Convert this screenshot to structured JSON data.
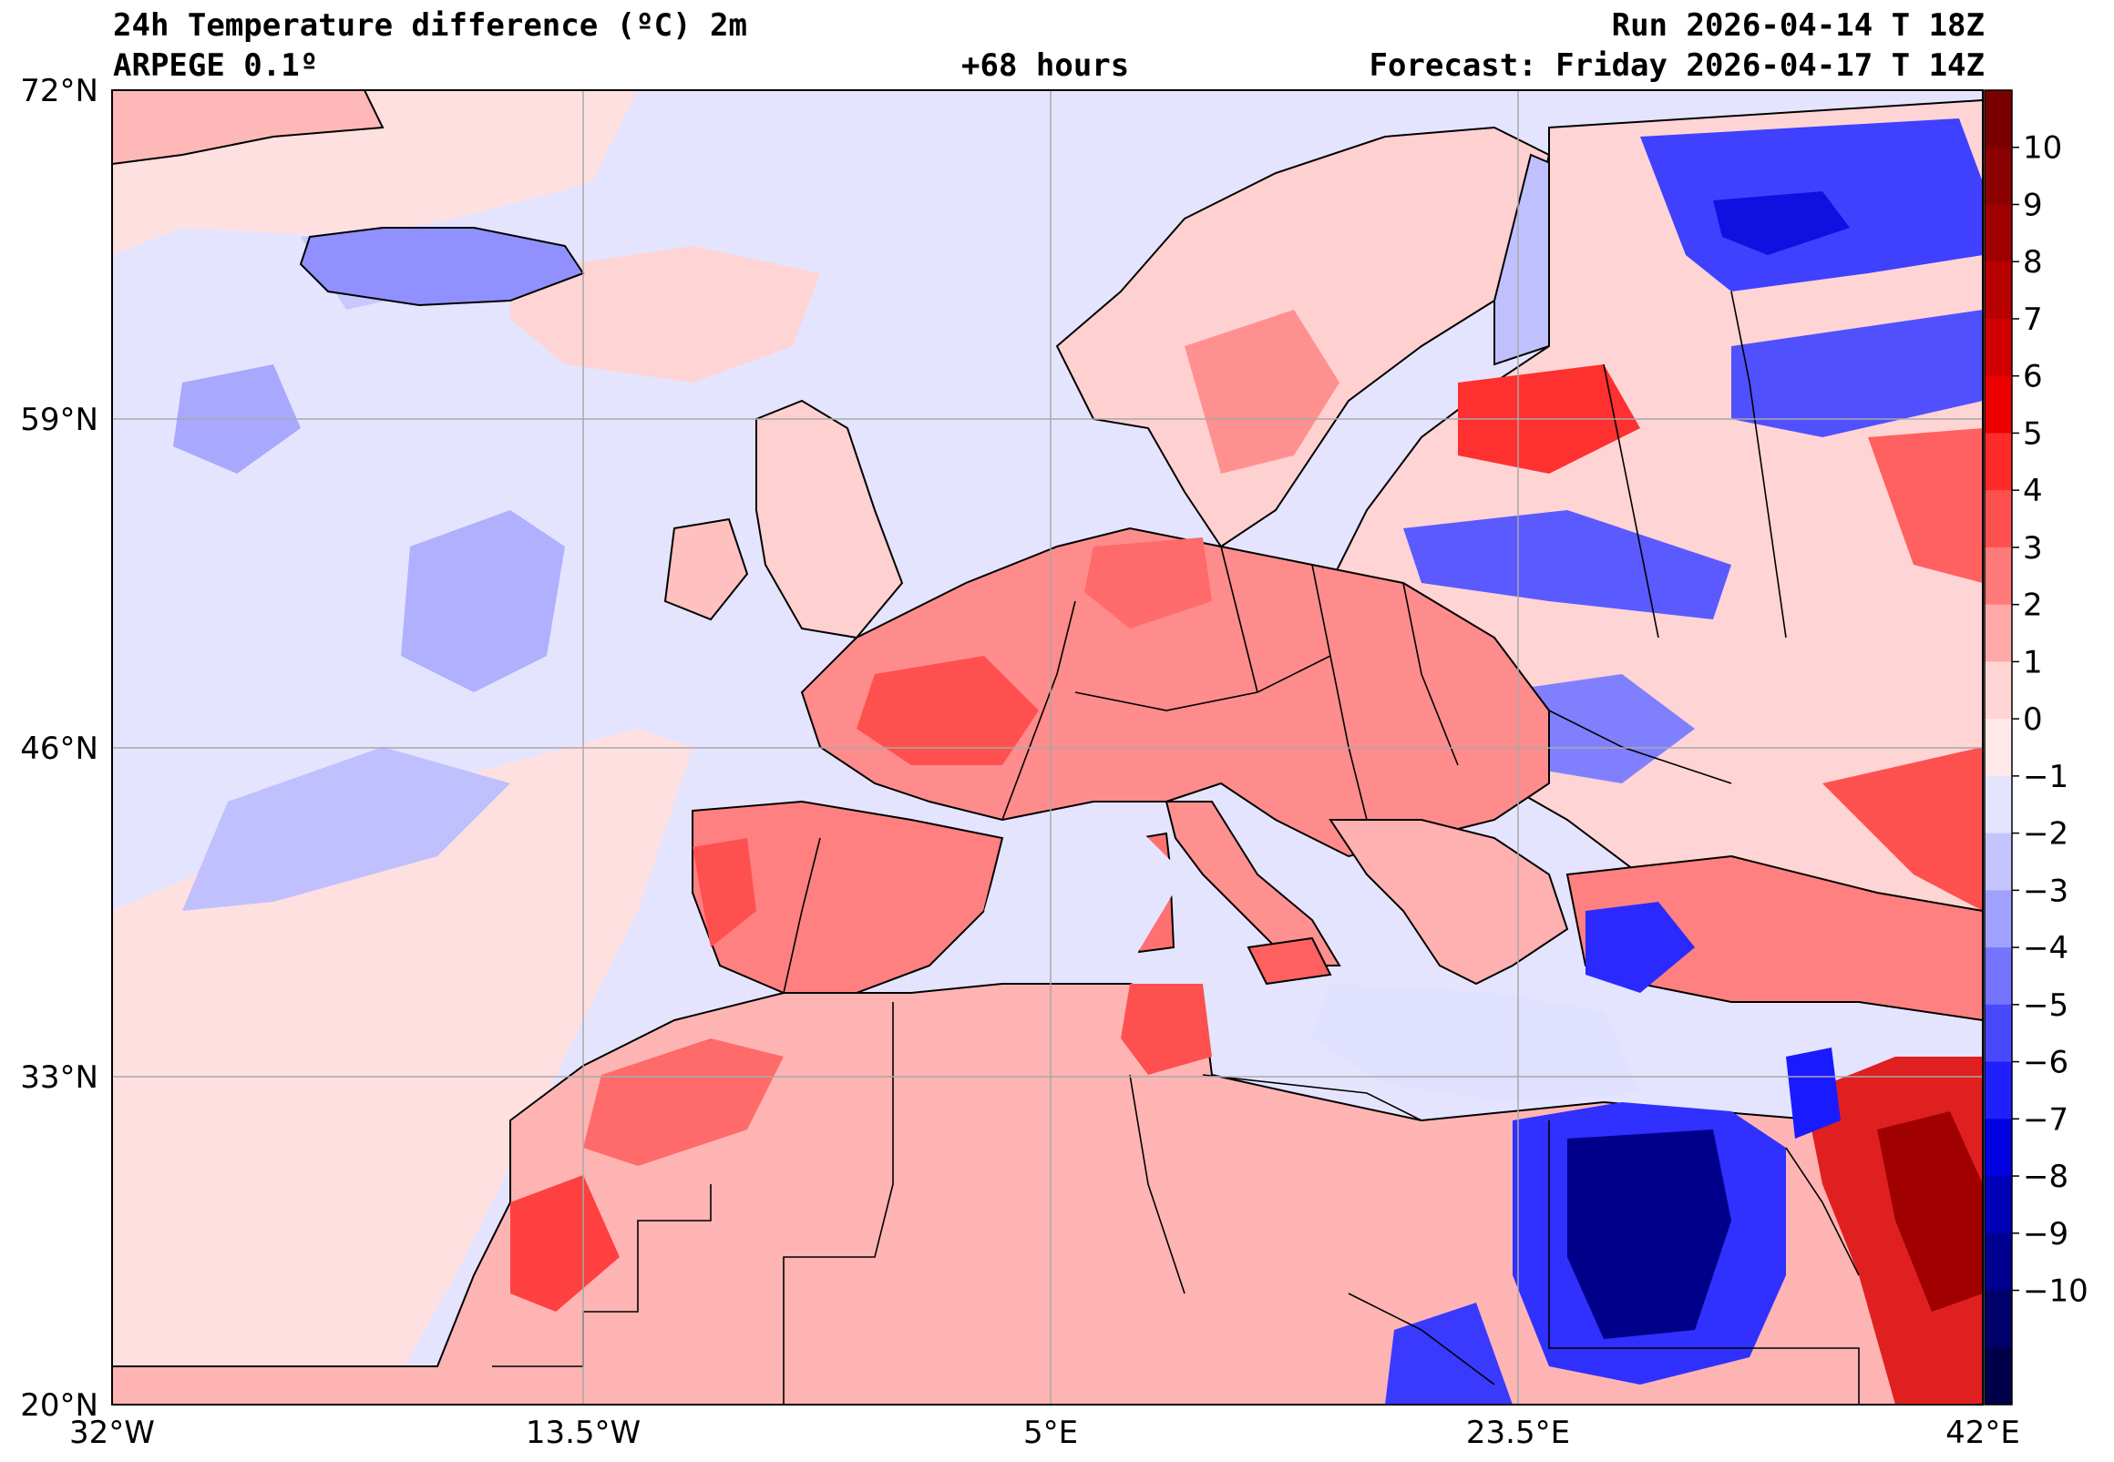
{
  "header": {
    "title": "24h Temperature difference (ºC) 2m",
    "model": "ARPEGE 0.1º",
    "lead_time": "+68 hours",
    "run": "Run 2026-04-14 T 18Z",
    "forecast": "Forecast: Friday 2026-04-17 T 14Z"
  },
  "axes": {
    "lat_labels": [
      "72°N",
      "59°N",
      "46°N",
      "33°N",
      "20°N"
    ],
    "lon_labels": [
      "32°W",
      "13.5°W",
      "5°E",
      "23.5°E",
      "42°E"
    ]
  },
  "colorbar": {
    "labels": [
      "10",
      "9",
      "8",
      "7",
      "6",
      "5",
      "4",
      "3",
      "2",
      "1",
      "0",
      "−1",
      "−2",
      "−3",
      "−4",
      "−5",
      "−6",
      "−7",
      "−8",
      "−9",
      "−10"
    ],
    "colors": [
      "#7a0000",
      "#8b0000",
      "#a00000",
      "#b80000",
      "#d00000",
      "#ee0000",
      "#ff2a2a",
      "#ff5050",
      "#ff7a7a",
      "#ffa8a8",
      "#ffd4d4",
      "#ffe8e8",
      "#e4e4ff",
      "#c4c4ff",
      "#a0a0ff",
      "#7474ff",
      "#4848ff",
      "#2020ff",
      "#0000e0",
      "#0000b8",
      "#000090",
      "#00006a",
      "#00004a"
    ]
  },
  "map": {
    "region": "Europe / North Africa",
    "ocean_color": "#e4e4ff",
    "warm_color": "#ff7070",
    "cold_color": "#3030ff"
  }
}
